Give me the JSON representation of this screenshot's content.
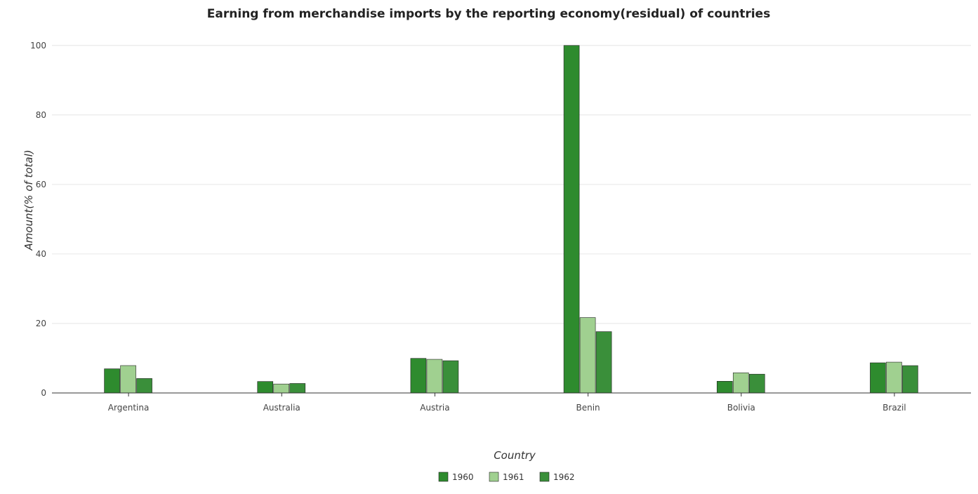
{
  "chart_data": {
    "type": "bar",
    "title": "Earning from merchandise imports by the reporting economy(residual) of countries",
    "xlabel": "Country",
    "ylabel": "Amount(% of total)",
    "categories": [
      "Argentina",
      "Australia",
      "Austria",
      "Benin",
      "Bolivia",
      "Brazil"
    ],
    "series": [
      {
        "name": "1960",
        "color": "#2e8b2e",
        "values": [
          6.95,
          3.3,
          9.95,
          100.0,
          3.37,
          8.68
        ]
      },
      {
        "name": "1961",
        "color": "#a0d090",
        "values": [
          7.88,
          2.58,
          9.68,
          21.7,
          5.81,
          8.87
        ]
      },
      {
        "name": "1962",
        "color": "#3a8f3a",
        "values": [
          4.16,
          2.73,
          9.28,
          17.65,
          5.41,
          7.87
        ]
      }
    ],
    "ylim": [
      0,
      105
    ],
    "yticks": [
      0,
      20,
      40,
      60,
      80,
      100
    ],
    "grid": true,
    "legend_position": "bottom-center"
  }
}
